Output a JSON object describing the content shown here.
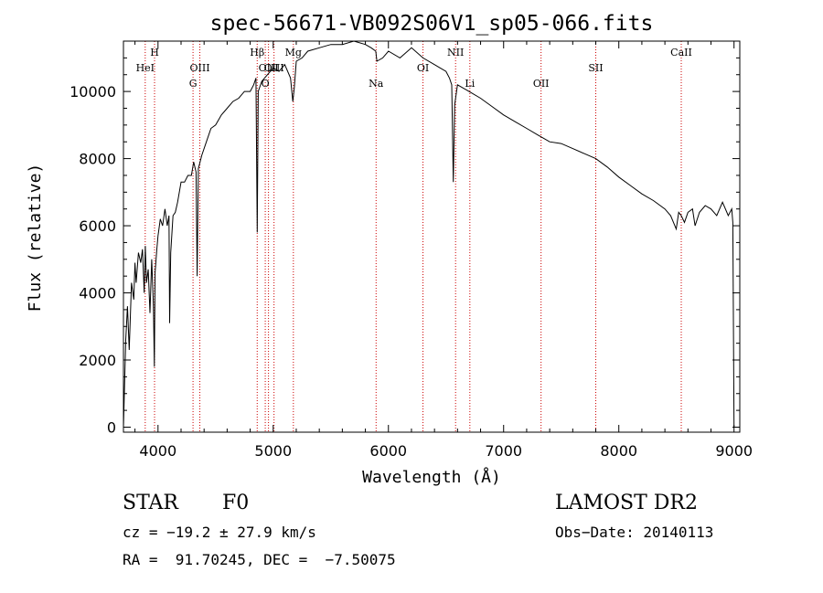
{
  "chart_data": {
    "type": "line",
    "title": "spec-56671-VB092S06V1_sp05-066.fits",
    "xlabel": "Wavelength (Å)",
    "ylabel": "Flux (relative)",
    "xlim": [
      3700,
      9050
    ],
    "ylim": [
      -150,
      11500
    ],
    "xticks": [
      4000,
      5000,
      6000,
      7000,
      8000,
      9000
    ],
    "yticks": [
      0,
      2000,
      4000,
      6000,
      8000,
      10000
    ],
    "grid": false,
    "line_color": "#000000",
    "marker_color": "#cc0000",
    "series": [
      {
        "x": [
          3700,
          3720,
          3735,
          3750,
          3770,
          3790,
          3800,
          3810,
          3830,
          3850,
          3865,
          3880,
          3890,
          3900,
          3915,
          3930,
          3945,
          3960,
          3968,
          3975,
          3990,
          4000,
          4020,
          4040,
          4060,
          4080,
          4095,
          4101,
          4110,
          4130,
          4150,
          4170,
          4200,
          4230,
          4260,
          4290,
          4310,
          4330,
          4340,
          4350,
          4380,
          4420,
          4460,
          4500,
          4550,
          4600,
          4650,
          4700,
          4750,
          4800,
          4830,
          4850,
          4861,
          4870,
          4900,
          4950,
          5000,
          5050,
          5100,
          5150,
          5170,
          5183,
          5200,
          5250,
          5300,
          5400,
          5500,
          5600,
          5700,
          5800,
          5850,
          5890,
          5900,
          5950,
          6000,
          6100,
          6200,
          6300,
          6400,
          6450,
          6500,
          6530,
          6550,
          6563,
          6575,
          6600,
          6650,
          6700,
          6800,
          6900,
          7000,
          7100,
          7200,
          7300,
          7400,
          7500,
          7600,
          7700,
          7800,
          7900,
          8000,
          8100,
          8200,
          8300,
          8400,
          8450,
          8498,
          8520,
          8542,
          8570,
          8600,
          8640,
          8662,
          8700,
          8750,
          8800,
          8850,
          8900,
          8950,
          8980,
          8990,
          9000
        ],
        "y": [
          0,
          2600,
          3600,
          2300,
          4300,
          3800,
          4900,
          4300,
          5200,
          4900,
          5300,
          4000,
          5400,
          4300,
          4700,
          3400,
          5000,
          3600,
          1800,
          4600,
          5300,
          5700,
          6200,
          6000,
          6500,
          6000,
          6300,
          3100,
          5200,
          6300,
          6400,
          6700,
          7300,
          7300,
          7500,
          7500,
          7900,
          7600,
          4500,
          7700,
          8100,
          8500,
          8900,
          9000,
          9300,
          9500,
          9700,
          9800,
          10000,
          10000,
          10200,
          10400,
          5800,
          10000,
          10300,
          10500,
          10700,
          10600,
          10800,
          10400,
          9700,
          10100,
          10900,
          11000,
          11200,
          11300,
          11400,
          11400,
          11500,
          11400,
          11300,
          11200,
          10900,
          11000,
          11200,
          11000,
          11300,
          11000,
          10800,
          10700,
          10600,
          10400,
          10200,
          7300,
          9600,
          10200,
          10100,
          10000,
          9800,
          9550,
          9300,
          9100,
          8900,
          8700,
          8500,
          8450,
          8300,
          8150,
          8000,
          7750,
          7450,
          7200,
          6950,
          6750,
          6500,
          6300,
          5900,
          6400,
          6300,
          6100,
          6400,
          6500,
          6000,
          6400,
          6600,
          6500,
          6300,
          6700,
          6300,
          6500,
          6100,
          0
        ]
      }
    ],
    "line_markers": [
      {
        "label": "HeI",
        "wavelength": 3889,
        "row": "top"
      },
      {
        "label": "H",
        "wavelength": 3970,
        "row": "upper"
      },
      {
        "label": "G",
        "wavelength": 4304,
        "row": "lower"
      },
      {
        "label": "OIII",
        "wavelength": 4363,
        "row": "top"
      },
      {
        "label": "Hβ",
        "wavelength": 4861,
        "row": "upper"
      },
      {
        "label": "OIII",
        "wavelength": 4959,
        "row": "top"
      },
      {
        "label": "O",
        "wavelength": 4931,
        "row": "lower"
      },
      {
        "label": "OIII",
        "wavelength": 5007,
        "row": "top"
      },
      {
        "label": "Mg",
        "wavelength": 5175,
        "row": "upper"
      },
      {
        "label": "Na",
        "wavelength": 5893,
        "row": "lower"
      },
      {
        "label": "OI",
        "wavelength": 6300,
        "row": "top"
      },
      {
        "label": "NII",
        "wavelength": 6583,
        "row": "upper"
      },
      {
        "label": "Li",
        "wavelength": 6707,
        "row": "lower"
      },
      {
        "label": "OII",
        "wavelength": 7325,
        "row": "lower"
      },
      {
        "label": "SII",
        "wavelength": 7800,
        "row": "top"
      },
      {
        "label": "CaII",
        "wavelength": 8542,
        "row": "upper"
      }
    ]
  },
  "info": {
    "class_label": "STAR",
    "subclass": "F0",
    "survey": "LAMOST DR2",
    "redshift": "cz = −19.2 ± 27.9 km/s",
    "obs_date": "Obs−Date: 20140113",
    "coords": "RA =  91.70245, DEC =  −7.50075"
  }
}
